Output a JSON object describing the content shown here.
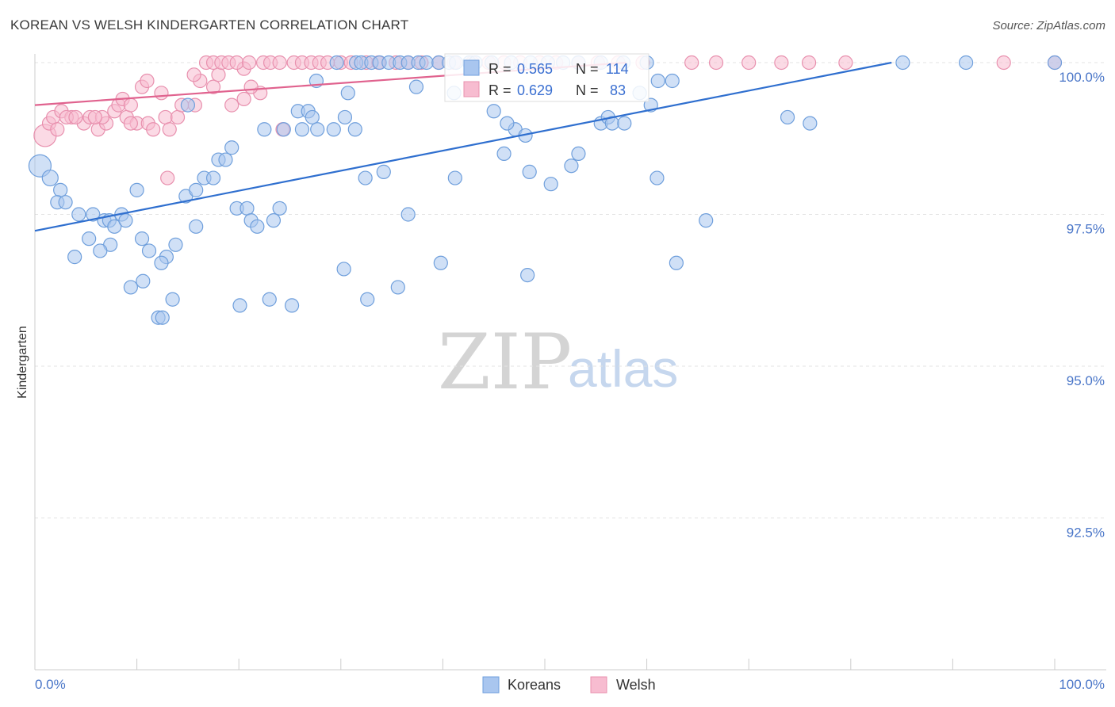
{
  "header": {
    "title": "KOREAN VS WELSH KINDERGARTEN CORRELATION CHART",
    "source": "Source: ZipAtlas.com"
  },
  "colors": {
    "koreans_fill": "#a9c6ef",
    "koreans_stroke": "#6f9fdc",
    "koreans_line": "#2f6fcf",
    "welsh_fill": "#f7bcd0",
    "welsh_stroke": "#e890ae",
    "welsh_line": "#e0628e",
    "tick_text": "#4a76c8"
  },
  "legend_box": {
    "koreans": {
      "r_label": "R = ",
      "r_value": "0.565",
      "n_label": "N = ",
      "n_value": "114"
    },
    "welsh": {
      "r_label": "R = ",
      "r_value": "0.629",
      "n_label": "N = ",
      "n_value": "83"
    }
  },
  "watermark": {
    "zip": "ZIP",
    "atlas": "atlas"
  },
  "chart_data": {
    "type": "scatter",
    "title": "KOREAN VS WELSH KINDERGARTEN CORRELATION CHART",
    "xlabel": "",
    "ylabel": "Kindergarten",
    "xlim": [
      0,
      100
    ],
    "ylim": [
      90.0,
      100.4
    ],
    "x_tick_labels": [
      "0.0%",
      "100.0%"
    ],
    "y_ticks": [
      {
        "value": 100.0,
        "label": "100.0%"
      },
      {
        "value": 97.5,
        "label": "97.5%"
      },
      {
        "value": 95.0,
        "label": "95.0%"
      },
      {
        "value": 92.5,
        "label": "92.5%"
      }
    ],
    "grid": true,
    "legend_position": "bottom-center",
    "series": [
      {
        "name": "Koreans",
        "r": 0.565,
        "n": 114,
        "trend": {
          "x": [
            0,
            84
          ],
          "y": [
            97.23,
            100.0
          ]
        },
        "points": [
          [
            0.5,
            98.3,
            3
          ],
          [
            1.5,
            98.1,
            2
          ],
          [
            2.5,
            97.9,
            1
          ],
          [
            2.2,
            97.7,
            1
          ],
          [
            3.0,
            97.7,
            1
          ],
          [
            4.3,
            97.5,
            1
          ],
          [
            5.7,
            97.5,
            1
          ],
          [
            6.8,
            97.4,
            1
          ],
          [
            7.3,
            97.4,
            1
          ],
          [
            8.5,
            97.5,
            1
          ],
          [
            7.8,
            97.3,
            1
          ],
          [
            8.9,
            97.4,
            1
          ],
          [
            5.3,
            97.1,
            1
          ],
          [
            7.4,
            97.0,
            1
          ],
          [
            10.5,
            97.1,
            1
          ],
          [
            3.9,
            96.8,
            1
          ],
          [
            6.4,
            96.9,
            1
          ],
          [
            11.2,
            96.9,
            1
          ],
          [
            12.9,
            96.8,
            1
          ],
          [
            12.4,
            96.7,
            1
          ],
          [
            13.8,
            97.0,
            1
          ],
          [
            9.4,
            96.3,
            1
          ],
          [
            10.6,
            96.4,
            1
          ],
          [
            13.5,
            96.1,
            1
          ],
          [
            12.1,
            95.8,
            1
          ],
          [
            12.5,
            95.8,
            1
          ],
          [
            10.0,
            97.9,
            1
          ],
          [
            15.8,
            97.3,
            1
          ],
          [
            14.8,
            97.8,
            1
          ],
          [
            15.8,
            97.9,
            1
          ],
          [
            16.6,
            98.1,
            1
          ],
          [
            17.5,
            98.1,
            1
          ],
          [
            18.0,
            98.4,
            1
          ],
          [
            18.7,
            98.4,
            1
          ],
          [
            19.3,
            98.6,
            1
          ],
          [
            15.0,
            99.3,
            1
          ],
          [
            19.8,
            97.6,
            1
          ],
          [
            20.8,
            97.6,
            1
          ],
          [
            21.2,
            97.4,
            1
          ],
          [
            21.8,
            97.3,
            1
          ],
          [
            23.4,
            97.4,
            1
          ],
          [
            24.0,
            97.6,
            1
          ],
          [
            20.1,
            96.0,
            1
          ],
          [
            23.0,
            96.1,
            1
          ],
          [
            25.2,
            96.0,
            1
          ],
          [
            22.5,
            98.9,
            1
          ],
          [
            24.4,
            98.9,
            1
          ],
          [
            25.8,
            99.2,
            1
          ],
          [
            26.2,
            98.9,
            1
          ],
          [
            26.8,
            99.2,
            1
          ],
          [
            27.2,
            99.1,
            1
          ],
          [
            27.7,
            98.9,
            1
          ],
          [
            29.3,
            98.9,
            1
          ],
          [
            30.4,
            99.1,
            1
          ],
          [
            31.4,
            98.9,
            1
          ],
          [
            27.6,
            99.7,
            1
          ],
          [
            29.6,
            100.0,
            1
          ],
          [
            30.7,
            99.5,
            1
          ],
          [
            31.5,
            100.0,
            1
          ],
          [
            32.0,
            100.0,
            1
          ],
          [
            33.0,
            100.0,
            1
          ],
          [
            33.8,
            100.0,
            1
          ],
          [
            34.7,
            100.0,
            1
          ],
          [
            35.8,
            100.0,
            1
          ],
          [
            36.6,
            100.0,
            1
          ],
          [
            37.6,
            100.0,
            1
          ],
          [
            38.4,
            100.0,
            1
          ],
          [
            39.6,
            100.0,
            1
          ],
          [
            40.6,
            100.0,
            1
          ],
          [
            41.3,
            100.0,
            1
          ],
          [
            42.6,
            100.0,
            1
          ],
          [
            43.2,
            100.0,
            1
          ],
          [
            44.8,
            100.0,
            1
          ],
          [
            46.7,
            100.0,
            1
          ],
          [
            48.6,
            100.0,
            1
          ],
          [
            50.3,
            100.0,
            1
          ],
          [
            51.8,
            100.0,
            1
          ],
          [
            53.3,
            100.0,
            1
          ],
          [
            55.5,
            100.0,
            1
          ],
          [
            57.7,
            100.0,
            1
          ],
          [
            60.0,
            100.0,
            1
          ],
          [
            37.4,
            99.6,
            1
          ],
          [
            41.1,
            99.5,
            1
          ],
          [
            45.0,
            99.2,
            1
          ],
          [
            47.1,
            98.9,
            1
          ],
          [
            48.1,
            98.8,
            1
          ],
          [
            46.0,
            98.5,
            1
          ],
          [
            41.2,
            98.1,
            1
          ],
          [
            34.2,
            98.2,
            1
          ],
          [
            32.4,
            98.1,
            1
          ],
          [
            36.6,
            97.5,
            1
          ],
          [
            30.3,
            96.6,
            1
          ],
          [
            32.6,
            96.1,
            1
          ],
          [
            35.6,
            96.3,
            1
          ],
          [
            39.8,
            96.7,
            1
          ],
          [
            46.3,
            99.0,
            1
          ],
          [
            48.5,
            98.2,
            1
          ],
          [
            50.6,
            98.0,
            1
          ],
          [
            53.3,
            98.5,
            1
          ],
          [
            52.6,
            98.3,
            1
          ],
          [
            48.3,
            96.5,
            1
          ],
          [
            55.5,
            99.0,
            1
          ],
          [
            56.2,
            99.1,
            1
          ],
          [
            56.6,
            99.0,
            1
          ],
          [
            57.8,
            99.0,
            1
          ],
          [
            59.3,
            99.5,
            1
          ],
          [
            61.1,
            99.7,
            1
          ],
          [
            62.5,
            99.7,
            1
          ],
          [
            60.4,
            99.3,
            1
          ],
          [
            61.0,
            98.1,
            1
          ],
          [
            65.8,
            97.4,
            1
          ],
          [
            62.9,
            96.7,
            1
          ],
          [
            73.8,
            99.1,
            1
          ],
          [
            76.0,
            99.0,
            1
          ],
          [
            85.1,
            100.0,
            1
          ],
          [
            91.3,
            100.0,
            1
          ],
          [
            100.0,
            100.0,
            1
          ]
        ]
      },
      {
        "name": "Welsh",
        "r": 0.629,
        "n": 83,
        "trend": {
          "x": [
            0,
            58
          ],
          "y": [
            99.3,
            100.0
          ]
        },
        "points": [
          [
            1.0,
            98.8,
            3
          ],
          [
            1.4,
            99.0,
            1
          ],
          [
            1.8,
            99.1,
            1
          ],
          [
            2.6,
            99.2,
            1
          ],
          [
            3.6,
            99.1,
            1
          ],
          [
            4.8,
            99.0,
            1
          ],
          [
            5.4,
            99.1,
            1
          ],
          [
            6.2,
            98.9,
            1
          ],
          [
            7.0,
            99.0,
            1
          ],
          [
            7.8,
            99.2,
            1
          ],
          [
            8.2,
            99.3,
            1
          ],
          [
            8.6,
            99.4,
            1
          ],
          [
            9.0,
            99.1,
            1
          ],
          [
            10.0,
            99.0,
            1
          ],
          [
            11.1,
            99.0,
            1
          ],
          [
            10.5,
            99.6,
            1
          ],
          [
            11.0,
            99.7,
            1
          ],
          [
            12.4,
            99.5,
            1
          ],
          [
            12.8,
            99.1,
            1
          ],
          [
            13.2,
            98.9,
            1
          ],
          [
            14.0,
            99.1,
            1
          ],
          [
            14.4,
            99.3,
            1
          ],
          [
            15.7,
            99.3,
            1
          ],
          [
            16.2,
            99.7,
            1
          ],
          [
            17.5,
            99.6,
            1
          ],
          [
            18.0,
            99.8,
            1
          ],
          [
            19.3,
            99.3,
            1
          ],
          [
            20.5,
            99.9,
            1
          ],
          [
            22.1,
            99.5,
            1
          ],
          [
            11.6,
            98.9,
            1
          ],
          [
            9.4,
            99.0,
            1
          ],
          [
            13.0,
            98.1,
            1
          ],
          [
            15.6,
            99.8,
            1
          ],
          [
            16.8,
            100.0,
            1
          ],
          [
            17.5,
            100.0,
            1
          ],
          [
            18.3,
            100.0,
            1
          ],
          [
            19.0,
            100.0,
            1
          ],
          [
            19.8,
            100.0,
            1
          ],
          [
            21.0,
            100.0,
            1
          ],
          [
            22.4,
            100.0,
            1
          ],
          [
            23.1,
            100.0,
            1
          ],
          [
            24.0,
            100.0,
            1
          ],
          [
            25.4,
            100.0,
            1
          ],
          [
            26.2,
            100.0,
            1
          ],
          [
            27.1,
            100.0,
            1
          ],
          [
            27.9,
            100.0,
            1
          ],
          [
            28.7,
            100.0,
            1
          ],
          [
            30.0,
            100.0,
            1
          ],
          [
            31.0,
            100.0,
            1
          ],
          [
            32.5,
            100.0,
            1
          ],
          [
            33.7,
            100.0,
            1
          ],
          [
            35.4,
            100.0,
            1
          ],
          [
            36.6,
            100.0,
            1
          ],
          [
            37.9,
            100.0,
            1
          ],
          [
            39.6,
            100.0,
            1
          ],
          [
            41.1,
            100.0,
            1
          ],
          [
            42.9,
            100.0,
            1
          ],
          [
            44.5,
            100.0,
            1
          ],
          [
            46.0,
            100.0,
            1
          ],
          [
            47.6,
            100.0,
            1
          ],
          [
            49.5,
            100.0,
            1
          ],
          [
            51.1,
            100.0,
            1
          ],
          [
            53.3,
            100.0,
            1
          ],
          [
            55.2,
            100.0,
            1
          ],
          [
            57.2,
            100.0,
            1
          ],
          [
            59.6,
            100.0,
            1
          ],
          [
            64.4,
            100.0,
            1
          ],
          [
            66.8,
            100.0,
            1
          ],
          [
            70.0,
            100.0,
            1
          ],
          [
            73.2,
            100.0,
            1
          ],
          [
            75.9,
            100.0,
            1
          ],
          [
            79.5,
            100.0,
            1
          ],
          [
            95.0,
            100.0,
            1
          ],
          [
            100.0,
            100.0,
            1
          ],
          [
            24.3,
            98.9,
            1
          ],
          [
            20.5,
            99.4,
            1
          ],
          [
            21.2,
            99.6,
            1
          ],
          [
            6.6,
            99.1,
            1
          ],
          [
            5.9,
            99.1,
            1
          ],
          [
            9.4,
            99.3,
            1
          ],
          [
            3.1,
            99.1,
            1
          ],
          [
            2.2,
            98.9,
            1
          ],
          [
            4.0,
            99.1,
            1
          ]
        ]
      }
    ]
  }
}
